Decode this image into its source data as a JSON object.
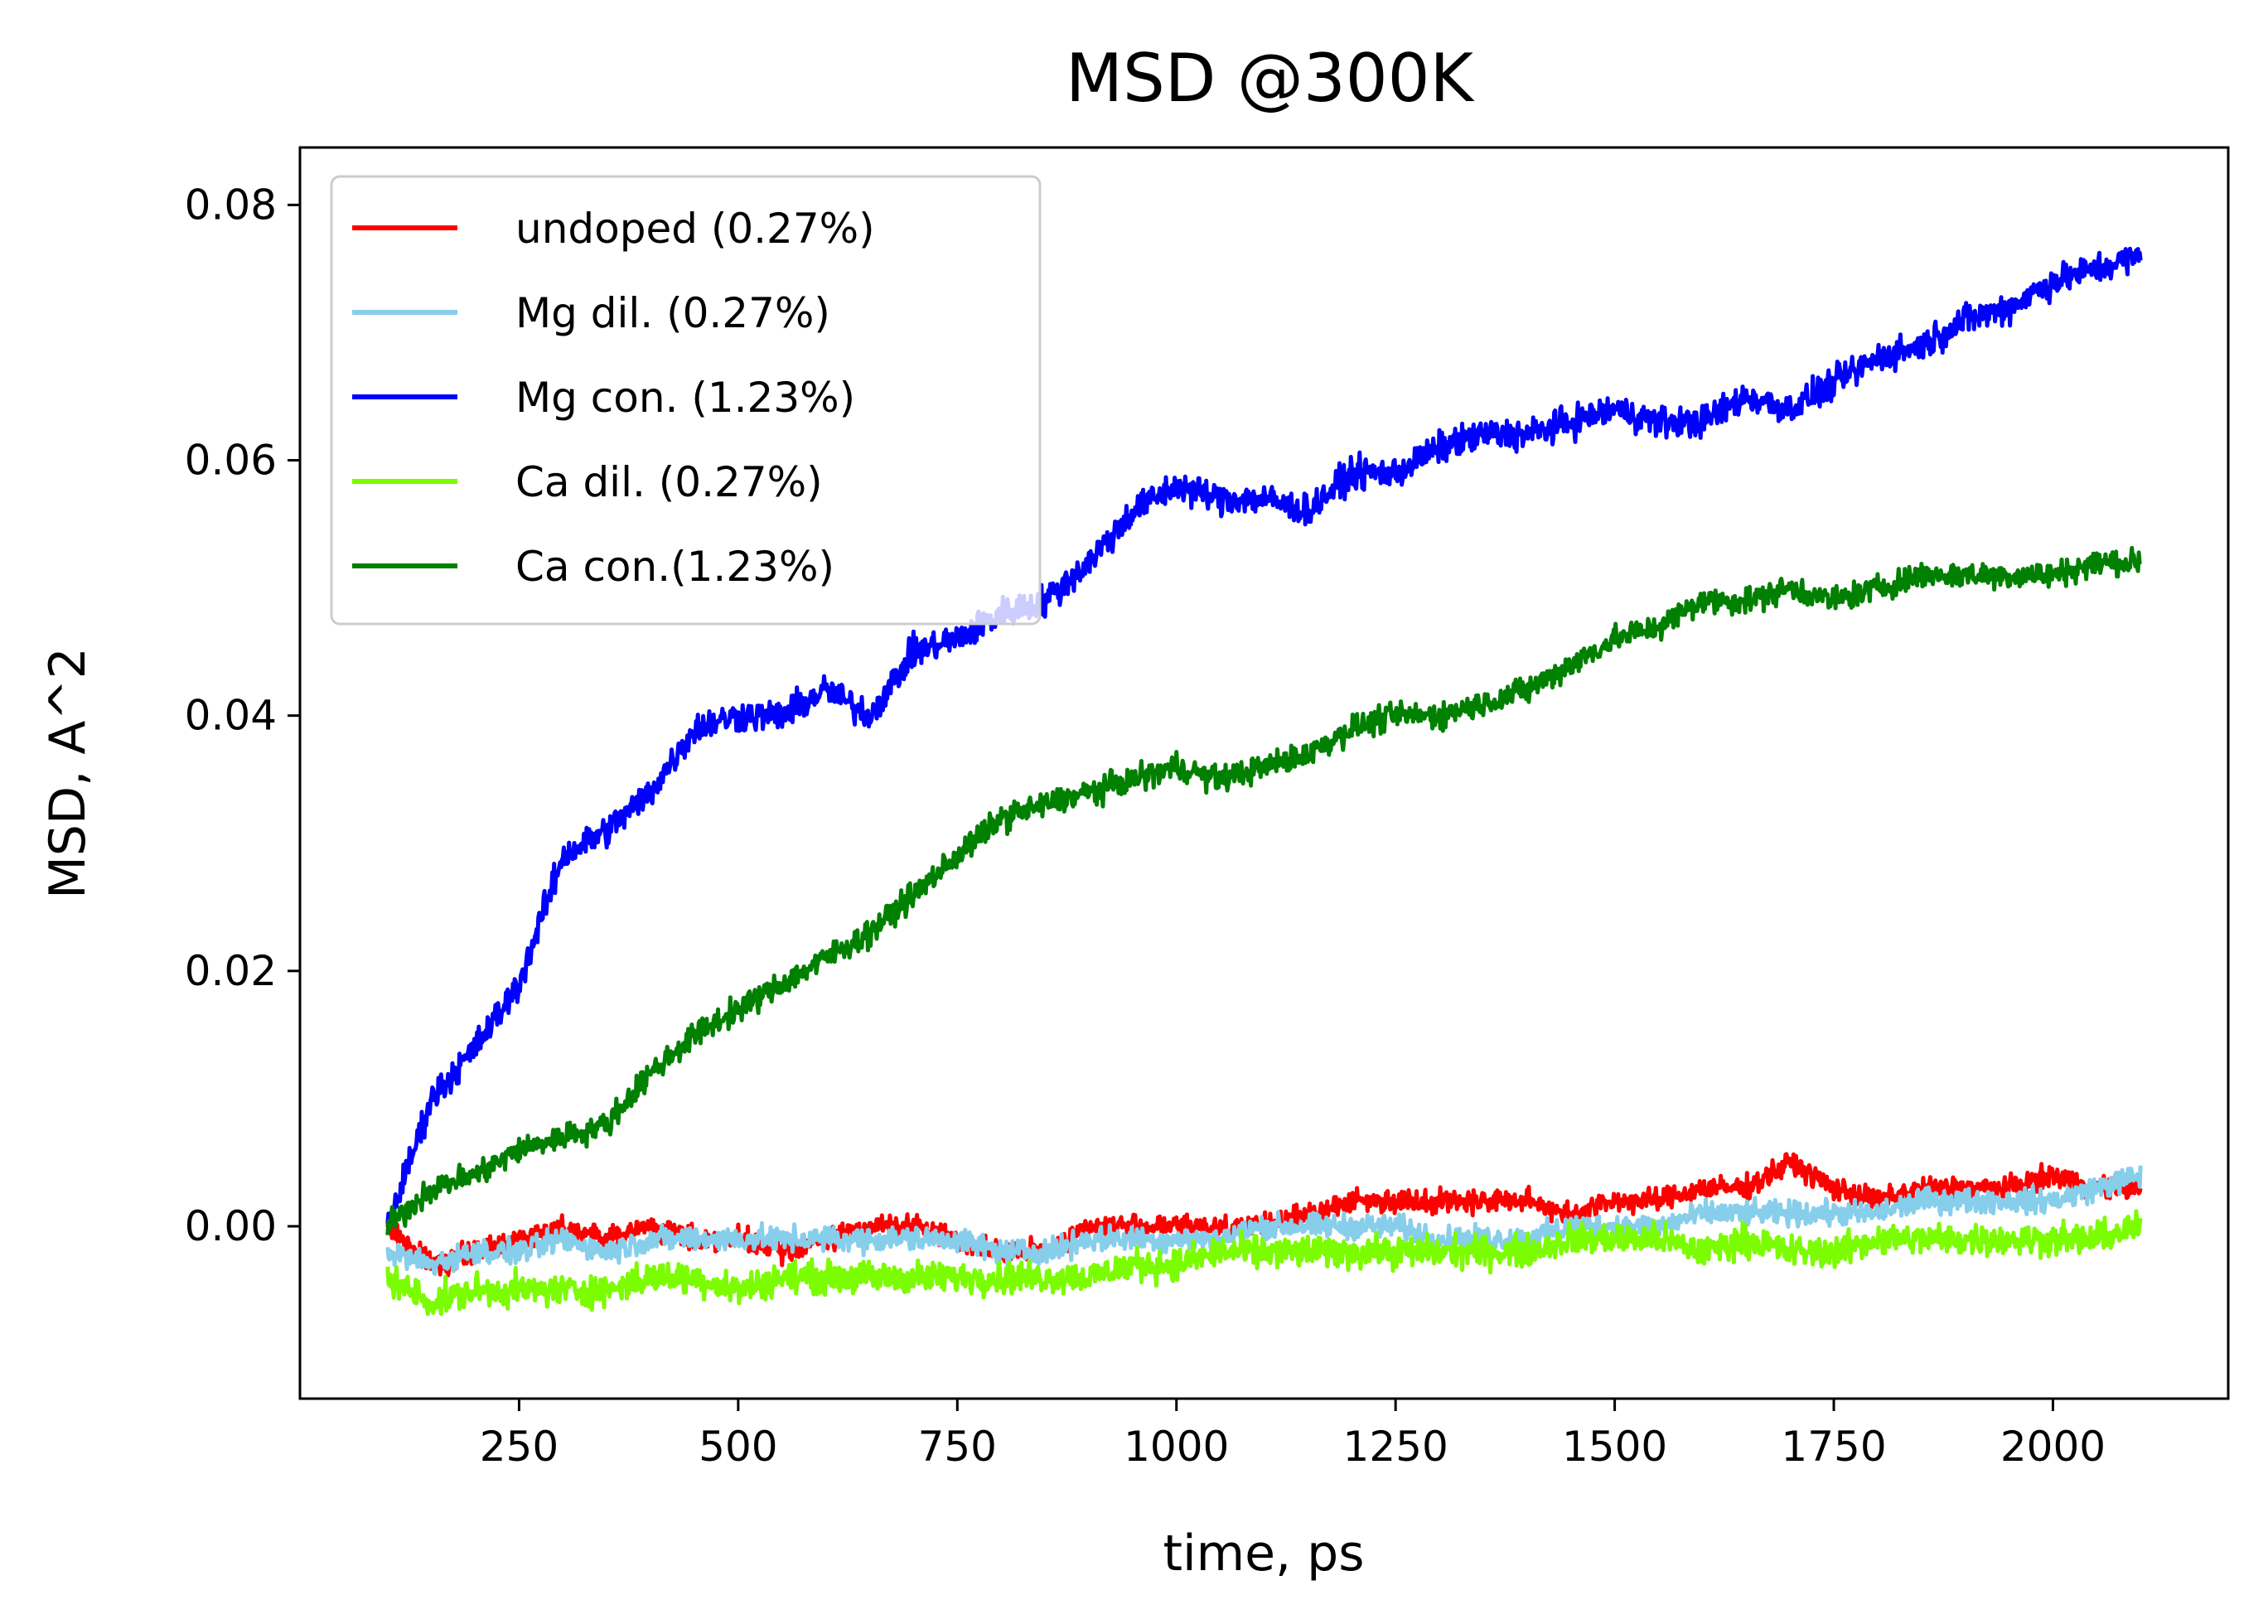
{
  "chart_data": {
    "type": "line",
    "title": "MSD @300K",
    "xlabel": "time, ps",
    "ylabel": "MSD, A^2",
    "xlim": [
      0,
      2200
    ],
    "ylim": [
      -0.0135,
      0.0845
    ],
    "xticks": [
      250,
      500,
      750,
      1000,
      1250,
      1500,
      1750,
      2000
    ],
    "xtick_labels": [
      "250",
      "500",
      "750",
      "1000",
      "1250",
      "1500",
      "1750",
      "2000"
    ],
    "yticks": [
      0.0,
      0.02,
      0.04,
      0.06,
      0.08
    ],
    "ytick_labels": [
      "0.00",
      "0.02",
      "0.04",
      "0.06",
      "0.08"
    ],
    "grid": false,
    "legend_position": "top-left",
    "x": [
      100,
      150,
      200,
      250,
      300,
      350,
      400,
      450,
      500,
      550,
      600,
      650,
      700,
      750,
      800,
      850,
      900,
      950,
      1000,
      1050,
      1100,
      1150,
      1200,
      1250,
      1300,
      1350,
      1400,
      1450,
      1500,
      1550,
      1600,
      1650,
      1700,
      1750,
      1800,
      1850,
      1900,
      1950,
      2000,
      2050,
      2100
    ],
    "series": [
      {
        "name": "undoped (0.27%)",
        "color": "#ff0000",
        "noise": 0.0013,
        "values": [
          0.0,
          -0.003,
          -0.002,
          -0.001,
          0.0,
          -0.001,
          0.0,
          -0.001,
          -0.001,
          -0.002,
          -0.001,
          0.0,
          0.0,
          -0.001,
          -0.002,
          -0.002,
          0.0,
          0.0,
          0.0,
          0.0,
          0.0,
          0.001,
          0.002,
          0.002,
          0.002,
          0.002,
          0.002,
          0.001,
          0.002,
          0.002,
          0.003,
          0.003,
          0.005,
          0.003,
          0.002,
          0.003,
          0.003,
          0.003,
          0.004,
          0.003,
          0.003
        ]
      },
      {
        "name": "Mg dil. (0.27%)",
        "color": "#87ceeb",
        "noise": 0.0014,
        "values": [
          -0.002,
          -0.003,
          -0.002,
          -0.002,
          -0.001,
          -0.002,
          -0.001,
          -0.001,
          -0.001,
          -0.001,
          -0.001,
          -0.001,
          -0.001,
          -0.001,
          -0.002,
          -0.002,
          -0.001,
          -0.001,
          -0.001,
          -0.001,
          0.0,
          0.0,
          0.0,
          0.0,
          -0.001,
          -0.001,
          -0.001,
          0.0,
          0.0,
          0.0,
          0.001,
          0.001,
          0.001,
          0.001,
          0.001,
          0.002,
          0.002,
          0.002,
          0.002,
          0.003,
          0.004
        ]
      },
      {
        "name": "Mg con. (1.23%)",
        "color": "#0000ff",
        "noise": 0.0018,
        "values": [
          0.0,
          0.01,
          0.014,
          0.019,
          0.029,
          0.031,
          0.034,
          0.039,
          0.04,
          0.04,
          0.042,
          0.04,
          0.045,
          0.046,
          0.048,
          0.049,
          0.052,
          0.056,
          0.058,
          0.057,
          0.057,
          0.056,
          0.059,
          0.059,
          0.061,
          0.062,
          0.062,
          0.063,
          0.064,
          0.063,
          0.063,
          0.065,
          0.064,
          0.066,
          0.068,
          0.069,
          0.071,
          0.072,
          0.074,
          0.075,
          0.076
        ]
      },
      {
        "name": "Ca dil. (0.27%)",
        "color": "#7cfc00",
        "noise": 0.0018,
        "values": [
          -0.004,
          -0.006,
          -0.005,
          -0.005,
          -0.005,
          -0.005,
          -0.004,
          -0.004,
          -0.005,
          -0.004,
          -0.004,
          -0.004,
          -0.004,
          -0.004,
          -0.004,
          -0.004,
          -0.004,
          -0.003,
          -0.003,
          -0.002,
          -0.002,
          -0.002,
          -0.002,
          -0.002,
          -0.002,
          -0.002,
          -0.002,
          -0.001,
          -0.001,
          -0.001,
          -0.002,
          -0.001,
          -0.002,
          -0.002,
          -0.001,
          -0.001,
          -0.001,
          -0.001,
          -0.001,
          -0.001,
          0.0
        ]
      },
      {
        "name": "Ca con.(1.23%)",
        "color": "#008000",
        "noise": 0.0015,
        "values": [
          0.0,
          0.003,
          0.004,
          0.006,
          0.007,
          0.008,
          0.012,
          0.015,
          0.017,
          0.019,
          0.021,
          0.023,
          0.026,
          0.029,
          0.032,
          0.033,
          0.034,
          0.035,
          0.036,
          0.035,
          0.036,
          0.037,
          0.039,
          0.04,
          0.04,
          0.041,
          0.042,
          0.044,
          0.046,
          0.047,
          0.049,
          0.049,
          0.05,
          0.049,
          0.05,
          0.051,
          0.051,
          0.051,
          0.051,
          0.052,
          0.052
        ]
      }
    ]
  }
}
